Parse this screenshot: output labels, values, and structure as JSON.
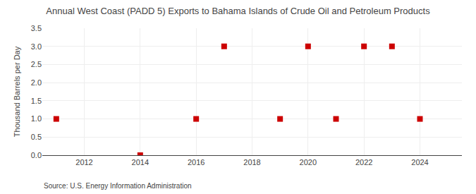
{
  "chart_data": {
    "type": "scatter",
    "title": "Annual West Coast (PADD 5) Exports to Bahama Islands of Crude Oil and Petroleum Products",
    "ylabel": "Thousand Barrels per Day",
    "source": "Source: U.S. Energy Information Administration",
    "x": [
      2011,
      2014,
      2016,
      2017,
      2019,
      2020,
      2021,
      2022,
      2023,
      2024
    ],
    "values": [
      1.0,
      0.0,
      1.0,
      3.0,
      1.0,
      3.0,
      1.0,
      3.0,
      3.0,
      1.0
    ],
    "color": "#cc0000",
    "marker": "square",
    "xlim": [
      2010.5,
      2025.5
    ],
    "xticks": [
      2012,
      2014,
      2016,
      2018,
      2020,
      2022,
      2024
    ],
    "ylim": [
      0.0,
      3.5
    ],
    "yticks": [
      {
        "value": 0.0,
        "label": "0.0"
      },
      0.5,
      {
        "value": 1.0,
        "label": "1.0"
      },
      1.5,
      {
        "value": 2.0,
        "label": "2.0"
      },
      2.5,
      {
        "value": 3.0,
        "label": "3.0"
      },
      3.5
    ],
    "grid": true
  }
}
